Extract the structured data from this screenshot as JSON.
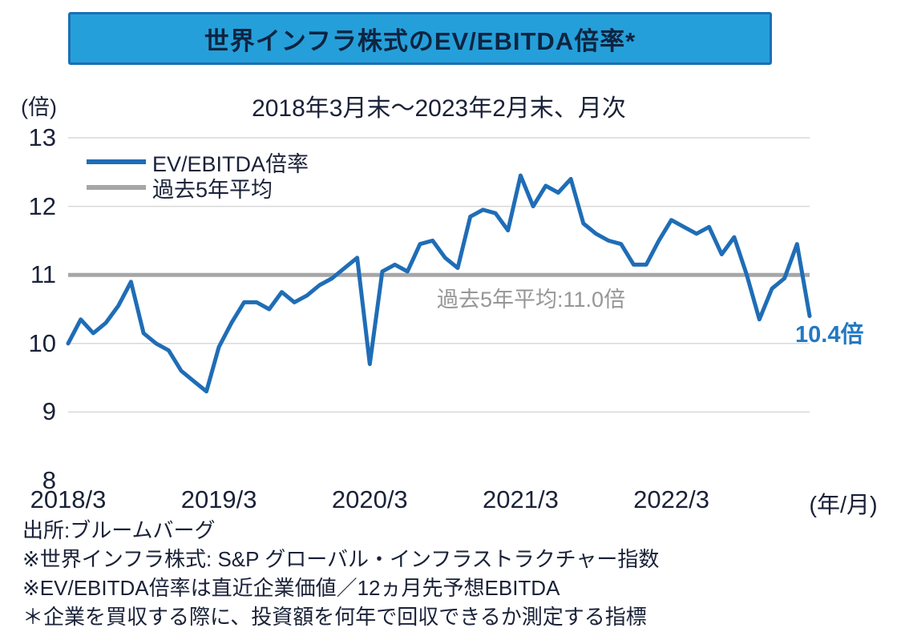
{
  "chart_data": {
    "type": "line",
    "title": "世界インフラ株式のEV/EBITDA倍率*",
    "subtitle": "2018年3月末～2023年2月末、月次",
    "unit_label": "(倍)",
    "x_axis_unit": "(年/月)",
    "ylim": [
      8,
      13
    ],
    "yticks": [
      13,
      12,
      11,
      10,
      9,
      8
    ],
    "grid": "horizontal",
    "legend_position": "top-left",
    "xticks": [
      {
        "label": "2018/3",
        "index": 0
      },
      {
        "label": "2019/3",
        "index": 12
      },
      {
        "label": "2020/3",
        "index": 24
      },
      {
        "label": "2021/3",
        "index": 36
      },
      {
        "label": "2022/3",
        "index": 48
      }
    ],
    "x": [
      "2018/3",
      "2018/4",
      "2018/5",
      "2018/6",
      "2018/7",
      "2018/8",
      "2018/9",
      "2018/10",
      "2018/11",
      "2018/12",
      "2019/1",
      "2019/2",
      "2019/3",
      "2019/4",
      "2019/5",
      "2019/6",
      "2019/7",
      "2019/8",
      "2019/9",
      "2019/10",
      "2019/11",
      "2019/12",
      "2020/1",
      "2020/2",
      "2020/3",
      "2020/4",
      "2020/5",
      "2020/6",
      "2020/7",
      "2020/8",
      "2020/9",
      "2020/10",
      "2020/11",
      "2020/12",
      "2021/1",
      "2021/2",
      "2021/3",
      "2021/4",
      "2021/5",
      "2021/6",
      "2021/7",
      "2021/8",
      "2021/9",
      "2021/10",
      "2021/11",
      "2021/12",
      "2022/1",
      "2022/2",
      "2022/3",
      "2022/4",
      "2022/5",
      "2022/6",
      "2022/7",
      "2022/8",
      "2022/9",
      "2022/10",
      "2022/11",
      "2022/12",
      "2023/1",
      "2023/2"
    ],
    "series": [
      {
        "name": "EV/EBITDA倍率",
        "type": "line",
        "color": "#1f6db6",
        "values": [
          10.0,
          10.35,
          10.15,
          10.3,
          10.55,
          10.9,
          10.15,
          10.0,
          9.9,
          9.6,
          9.45,
          9.3,
          9.95,
          10.3,
          10.6,
          10.6,
          10.5,
          10.75,
          10.6,
          10.7,
          10.85,
          10.95,
          11.1,
          11.25,
          9.7,
          11.05,
          11.15,
          11.05,
          11.45,
          11.5,
          11.25,
          11.1,
          11.85,
          11.95,
          11.9,
          11.65,
          12.45,
          12.0,
          12.3,
          12.2,
          12.4,
          11.75,
          11.6,
          11.5,
          11.45,
          11.15,
          11.15,
          11.5,
          11.8,
          11.7,
          11.6,
          11.7,
          11.3,
          11.55,
          11.0,
          10.35,
          10.8,
          10.95,
          11.45,
          10.4
        ]
      },
      {
        "name": "過去5年平均",
        "type": "average-line",
        "color": "#a6a6a6",
        "value": 11.0
      }
    ],
    "annotation": "過去5年平均:11.0倍",
    "end_label": "10.4倍"
  },
  "footer": {
    "lines": [
      "出所:ブルームバーグ",
      "※世界インフラ株式: S&P グローバル・インフラストラクチャー指数",
      "※EV/EBITDA倍率は直近企業価値／12ヵ月先予想EBITDA",
      "＊企業を買収する際に、投資額を何年で回収できるか測定する指標"
    ]
  },
  "colors": {
    "title_box_bg": "#259fd9",
    "title_box_border": "#1a6fb5",
    "series_blue": "#1f6db6",
    "average_gray": "#a6a6a6",
    "gridline_gray": "#d9d9d9",
    "text_dark": "#1a2238",
    "annotation_gray": "#969696",
    "end_label_blue": "#2379c2"
  }
}
